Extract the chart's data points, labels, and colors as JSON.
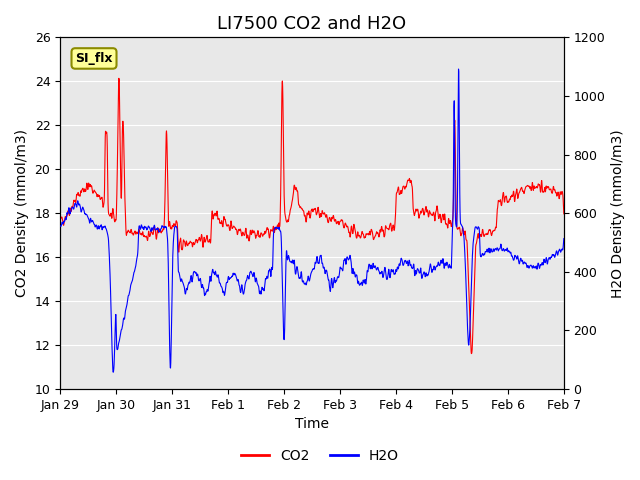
{
  "title": "LI7500 CO2 and H2O",
  "xlabel": "Time",
  "ylabel_left": "CO2 Density (mmol/m3)",
  "ylabel_right": "H2O Density (mmol/m3)",
  "ylim_left": [
    10,
    26
  ],
  "ylim_right": [
    0,
    1200
  ],
  "yticks_left": [
    10,
    12,
    14,
    16,
    18,
    20,
    22,
    24,
    26
  ],
  "yticks_right": [
    0,
    200,
    400,
    600,
    800,
    1000,
    1200
  ],
  "xtick_labels": [
    "Jan 29",
    "Jan 30",
    "Jan 31",
    "Feb 1",
    "Feb 2",
    "Feb 3",
    "Feb 4",
    "Feb 5",
    "Feb 6",
    "Feb 7"
  ],
  "co2_color": "#FF0000",
  "h2o_color": "#0000FF",
  "bg_color": "#E8E8E8",
  "annotation_text": "SI_flx",
  "annotation_bg": "#FFFF99",
  "annotation_border": "#8B8B00",
  "legend_entries": [
    "CO2",
    "H2O"
  ],
  "title_fontsize": 13,
  "axis_label_fontsize": 10,
  "tick_fontsize": 9
}
